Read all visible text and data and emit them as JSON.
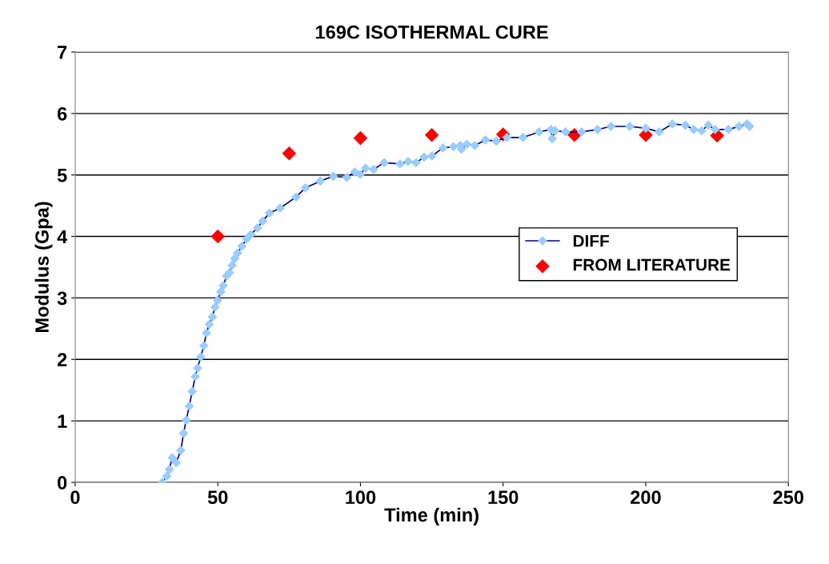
{
  "chart_data": {
    "type": "line",
    "title": "169C ISOTHERMAL CURE",
    "xlabel": "Time (min)",
    "ylabel": "Modulus (Gpa)",
    "xlim": [
      0,
      250
    ],
    "xticks": [
      0,
      50,
      100,
      150,
      200,
      250
    ],
    "ylim": [
      0,
      7
    ],
    "yticks": [
      0,
      1,
      2,
      3,
      4,
      5,
      6,
      7
    ],
    "grid": "y",
    "legend": "right",
    "series": [
      {
        "name": "DIFF",
        "color": "#99ccff",
        "marker": "diamond",
        "x": [
          30.5,
          32.1,
          33.0,
          34.0,
          35.4,
          37.0,
          38.0,
          38.9,
          40.0,
          41.0,
          42.1,
          42.9,
          44.0,
          45.1,
          46.0,
          47.0,
          48.1,
          49.0,
          49.9,
          51.0,
          51.9,
          53.1,
          54.1,
          55.0,
          55.9,
          56.9,
          58.4,
          60.1,
          61.5,
          63.9,
          65.7,
          68.1,
          71.8,
          77.4,
          80.7,
          85.9,
          90.5,
          95.2,
          98.0,
          99.9,
          101.8,
          104.6,
          108.3,
          113.9,
          116.7,
          119.5,
          122.3,
          125.1,
          128.9,
          132.6,
          135.0,
          135.4,
          137.3,
          140.1,
          143.8,
          147.6,
          151.3,
          157.0,
          162.6,
          166.8,
          167.2,
          168.2,
          171.9,
          177.5,
          183.1,
          187.8,
          194.4,
          200.0,
          204.7,
          209.3,
          213.9,
          216.8,
          219.6,
          221.9,
          224.3,
          229.0,
          232.7,
          235.5,
          236.4
        ],
        "values": [
          0,
          0.1,
          0.21,
          0.4,
          0.32,
          0.52,
          0.8,
          1.01,
          1.24,
          1.48,
          1.72,
          1.86,
          2.04,
          2.22,
          2.43,
          2.57,
          2.69,
          2.85,
          2.96,
          3.1,
          3.2,
          3.36,
          3.41,
          3.53,
          3.64,
          3.73,
          3.84,
          3.96,
          4.03,
          4.14,
          4.25,
          4.38,
          4.46,
          4.64,
          4.79,
          4.9,
          4.98,
          4.96,
          5.05,
          5.01,
          5.11,
          5.09,
          5.2,
          5.18,
          5.22,
          5.2,
          5.29,
          5.31,
          5.44,
          5.46,
          5.48,
          5.42,
          5.5,
          5.48,
          5.57,
          5.55,
          5.61,
          5.61,
          5.7,
          5.74,
          5.59,
          5.72,
          5.7,
          5.7,
          5.74,
          5.79,
          5.79,
          5.76,
          5.7,
          5.83,
          5.81,
          5.74,
          5.72,
          5.81,
          5.74,
          5.74,
          5.79,
          5.83,
          5.79
        ]
      },
      {
        "name": "FROM LITERATURE",
        "type": "scatter",
        "color": "#ff0000",
        "marker": "diamond",
        "x": [
          50,
          75,
          100,
          125,
          150,
          175,
          200,
          225
        ],
        "values": [
          4.0,
          5.35,
          5.6,
          5.65,
          5.66,
          5.65,
          5.65,
          5.64
        ]
      }
    ]
  }
}
